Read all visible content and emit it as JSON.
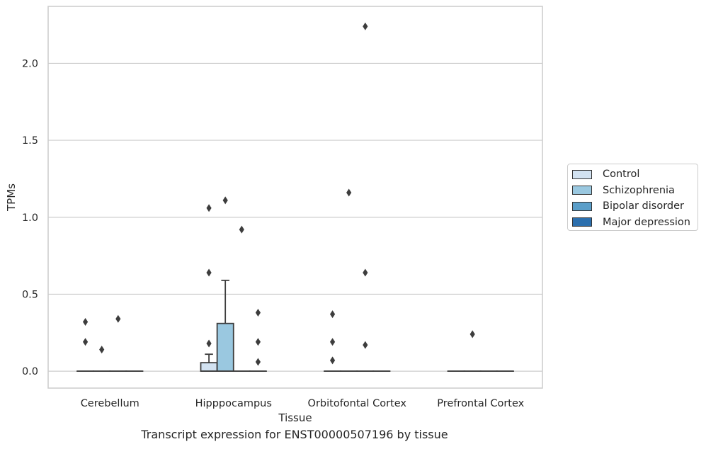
{
  "chart_data": {
    "type": "box",
    "title": "",
    "caption": "Transcript expression for ENST00000507196 by tissue",
    "xlabel": "Tissue",
    "ylabel": "TPMs",
    "ylim": [
      -0.11,
      2.37
    ],
    "yticks": [
      0.0,
      0.5,
      1.0,
      1.5,
      2.0
    ],
    "ytick_labels": [
      "0.0",
      "0.5",
      "1.0",
      "1.5",
      "2.0"
    ],
    "grid": true,
    "legend_position": "right",
    "categories": [
      "Cerebellum",
      "Hipppocampus",
      "Orbitofontal Cortex",
      "Prefrontal Cortex"
    ],
    "series": [
      {
        "name": "Control",
        "color": "#d2e2f1",
        "boxes": [
          {
            "category": "Cerebellum",
            "q1": 0,
            "median": 0,
            "q3": 0,
            "whisker_low": 0,
            "whisker_high": 0,
            "outliers": [
              0.32,
              0.19
            ]
          },
          {
            "category": "Hipppocampus",
            "q1": 0,
            "median": 0,
            "q3": 0.055,
            "whisker_low": 0,
            "whisker_high": 0.11,
            "outliers": [
              1.06,
              0.64,
              0.18
            ]
          },
          {
            "category": "Orbitofontal Cortex",
            "q1": 0,
            "median": 0,
            "q3": 0,
            "whisker_low": 0,
            "whisker_high": 0,
            "outliers": [
              0.37,
              0.19,
              0.07
            ]
          },
          {
            "category": "Prefrontal Cortex",
            "q1": 0,
            "median": 0,
            "q3": 0,
            "whisker_low": 0,
            "whisker_high": 0,
            "outliers": []
          }
        ]
      },
      {
        "name": "Schizophrenia",
        "color": "#9ac8e0",
        "boxes": [
          {
            "category": "Cerebellum",
            "q1": 0,
            "median": 0,
            "q3": 0,
            "whisker_low": 0,
            "whisker_high": 0,
            "outliers": [
              0.14
            ]
          },
          {
            "category": "Hipppocampus",
            "q1": 0,
            "median": 0,
            "q3": 0.31,
            "whisker_low": 0,
            "whisker_high": 0.59,
            "outliers": [
              1.11
            ]
          },
          {
            "category": "Orbitofontal Cortex",
            "q1": 0,
            "median": 0,
            "q3": 0,
            "whisker_low": 0,
            "whisker_high": 0,
            "outliers": [
              1.16
            ]
          },
          {
            "category": "Prefrontal Cortex",
            "q1": 0,
            "median": 0,
            "q3": 0,
            "whisker_low": 0,
            "whisker_high": 0,
            "outliers": [
              0.24
            ]
          }
        ]
      },
      {
        "name": "Bipolar disorder",
        "color": "#5a9ec9",
        "boxes": [
          {
            "category": "Cerebellum",
            "q1": 0,
            "median": 0,
            "q3": 0,
            "whisker_low": 0,
            "whisker_high": 0,
            "outliers": [
              0.34
            ]
          },
          {
            "category": "Hipppocampus",
            "q1": 0,
            "median": 0,
            "q3": 0,
            "whisker_low": 0,
            "whisker_high": 0,
            "outliers": [
              0.92
            ]
          },
          {
            "category": "Orbitofontal Cortex",
            "q1": 0,
            "median": 0,
            "q3": 0,
            "whisker_low": 0,
            "whisker_high": 0,
            "outliers": [
              2.24,
              0.64,
              0.17
            ]
          },
          {
            "category": "Prefrontal Cortex",
            "q1": 0,
            "median": 0,
            "q3": 0,
            "whisker_low": 0,
            "whisker_high": 0,
            "outliers": []
          }
        ]
      },
      {
        "name": "Major depression",
        "color": "#2c6fad",
        "boxes": [
          {
            "category": "Cerebellum",
            "q1": 0,
            "median": 0,
            "q3": 0,
            "whisker_low": 0,
            "whisker_high": 0,
            "outliers": []
          },
          {
            "category": "Hipppocampus",
            "q1": 0,
            "median": 0,
            "q3": 0,
            "whisker_low": 0,
            "whisker_high": 0,
            "outliers": [
              0.38,
              0.19,
              0.06
            ]
          },
          {
            "category": "Orbitofontal Cortex",
            "q1": 0,
            "median": 0,
            "q3": 0,
            "whisker_low": 0,
            "whisker_high": 0,
            "outliers": []
          },
          {
            "category": "Prefrontal Cortex",
            "q1": 0,
            "median": 0,
            "q3": 0,
            "whisker_low": 0,
            "whisker_high": 0,
            "outliers": []
          }
        ]
      }
    ]
  }
}
